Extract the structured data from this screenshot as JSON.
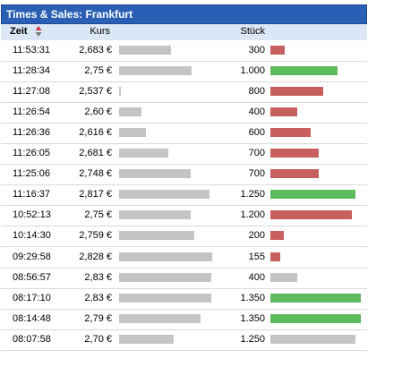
{
  "title": "Times & Sales: Frankfurt",
  "columns": {
    "time": "Zeit",
    "price": "Kurs",
    "quantity": "Stück"
  },
  "colors": {
    "header_bg": "#2a5fb5",
    "column_bg": "#dbe6f6",
    "down": "#c75f5f",
    "up": "#5dbb5d",
    "neutral": "#c4c4c4"
  },
  "trades": [
    {
      "time": "11:53:31",
      "price": "2,683 €",
      "quantity": "300",
      "price_level": 0.57,
      "qty_level": 0.16,
      "direction": "down"
    },
    {
      "time": "11:28:34",
      "price": "2,75 €",
      "quantity": "1.000",
      "price_level": 0.8,
      "qty_level": 0.74,
      "direction": "up"
    },
    {
      "time": "11:27:08",
      "price": "2,537 €",
      "quantity": "800",
      "price_level": 0.02,
      "qty_level": 0.58,
      "direction": "down"
    },
    {
      "time": "11:26:54",
      "price": "2,60 €",
      "quantity": "400",
      "price_level": 0.25,
      "qty_level": 0.3,
      "direction": "down"
    },
    {
      "time": "11:26:36",
      "price": "2,616 €",
      "quantity": "600",
      "price_level": 0.3,
      "qty_level": 0.45,
      "direction": "down"
    },
    {
      "time": "11:26:05",
      "price": "2,681 €",
      "quantity": "700",
      "price_level": 0.54,
      "qty_level": 0.53,
      "direction": "down"
    },
    {
      "time": "11:25:06",
      "price": "2,748 €",
      "quantity": "700",
      "price_level": 0.79,
      "qty_level": 0.53,
      "direction": "down"
    },
    {
      "time": "11:16:37",
      "price": "2,817 €",
      "quantity": "1.250",
      "price_level": 1.0,
      "qty_level": 0.94,
      "direction": "up"
    },
    {
      "time": "10:52:13",
      "price": "2,75 €",
      "quantity": "1.200",
      "price_level": 0.79,
      "qty_level": 0.9,
      "direction": "down"
    },
    {
      "time": "10:14:30",
      "price": "2,759 €",
      "quantity": "200",
      "price_level": 0.83,
      "qty_level": 0.15,
      "direction": "down"
    },
    {
      "time": "09:29:58",
      "price": "2,828 €",
      "quantity": "155",
      "price_level": 1.03,
      "qty_level": 0.11,
      "direction": "down"
    },
    {
      "time": "08:56:57",
      "price": "2,83 €",
      "quantity": "400",
      "price_level": 1.02,
      "qty_level": 0.3,
      "direction": "neutral"
    },
    {
      "time": "08:17:10",
      "price": "2,83 €",
      "quantity": "1.350",
      "price_level": 1.02,
      "qty_level": 1.0,
      "direction": "up"
    },
    {
      "time": "08:14:48",
      "price": "2,79 €",
      "quantity": "1.350",
      "price_level": 0.9,
      "qty_level": 1.0,
      "direction": "up"
    },
    {
      "time": "08:07:58",
      "price": "2,70 €",
      "quantity": "1.250",
      "price_level": 0.6,
      "qty_level": 0.94,
      "direction": "neutral"
    }
  ]
}
